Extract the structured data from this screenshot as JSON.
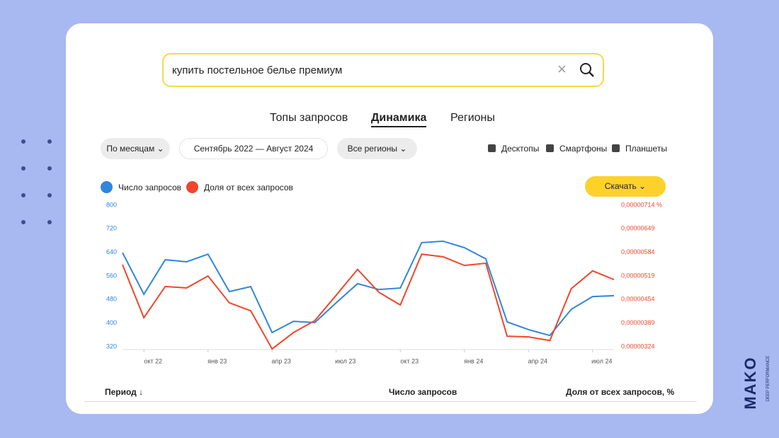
{
  "search": {
    "query": "купить постельное белье премиум"
  },
  "tabs": [
    "Топы запросов",
    "Динамика",
    "Регионы"
  ],
  "filters": {
    "period": "По месяцам",
    "range": "Сентябрь 2022 — Август 2024",
    "region": "Все регионы",
    "devices": [
      "Десктопы",
      "Смартфоны",
      "Планшеты"
    ]
  },
  "download": "Скачать",
  "chart_data": {
    "type": "line",
    "categories": [
      null,
      "окт 22",
      null,
      null,
      "янв 23",
      null,
      null,
      "апр 23",
      null,
      null,
      "июл 23",
      null,
      null,
      "окт 23",
      null,
      null,
      "янв 24",
      null,
      null,
      "апр 24",
      null,
      null,
      "июл 24",
      null
    ],
    "series": [
      {
        "name": "Число запросов",
        "color": "#2f86dd",
        "values": [
          639,
          498,
          615,
          608,
          634,
          507,
          524,
          368,
          406,
          402,
          469,
          534,
          514,
          519,
          673,
          678,
          656,
          618,
          404,
          378,
          358,
          447,
          490,
          493
        ]
      },
      {
        "name": "Доля от всех запросов",
        "color": "#f0462c",
        "axis": "y2",
        "values": [
          5.5e-06,
          4.04e-06,
          4.9e-06,
          4.86e-06,
          5.19e-06,
          4.45e-06,
          4.23e-06,
          3.18e-06,
          3.63e-06,
          3.96e-06,
          4.66e-06,
          5.37e-06,
          4.74e-06,
          4.39e-06,
          5.79e-06,
          5.72e-06,
          5.48e-06,
          5.54e-06,
          3.53e-06,
          3.51e-06,
          3.41e-06,
          4.84e-06,
          5.33e-06,
          5.09e-06
        ]
      }
    ],
    "ylim": [
      320,
      800
    ],
    "yticks": [
      320,
      400,
      480,
      560,
      640,
      720,
      800
    ],
    "y2lim": [
      3.24e-06,
      7.14e-06
    ],
    "y2ticks": [
      {
        "value": 3.24e-06,
        "label": "0,00000324"
      },
      {
        "value": 3.89e-06,
        "label": "0,00000389"
      },
      {
        "value": 4.54e-06,
        "label": "0,00000454"
      },
      {
        "value": 5.19e-06,
        "label": "0,00000519"
      },
      {
        "value": 5.84e-06,
        "label": "0,00000584"
      },
      {
        "value": 6.49e-06,
        "label": "0,00000649"
      },
      {
        "value": 7.14e-06,
        "label": "0,00000714 %"
      }
    ]
  },
  "table": {
    "columns": [
      "Период ↓",
      "Число запросов",
      "Доля от всех запросов, %"
    ]
  },
  "brand": {
    "name": "MAKO",
    "tagline": "DEEP PERFORMANCE"
  }
}
